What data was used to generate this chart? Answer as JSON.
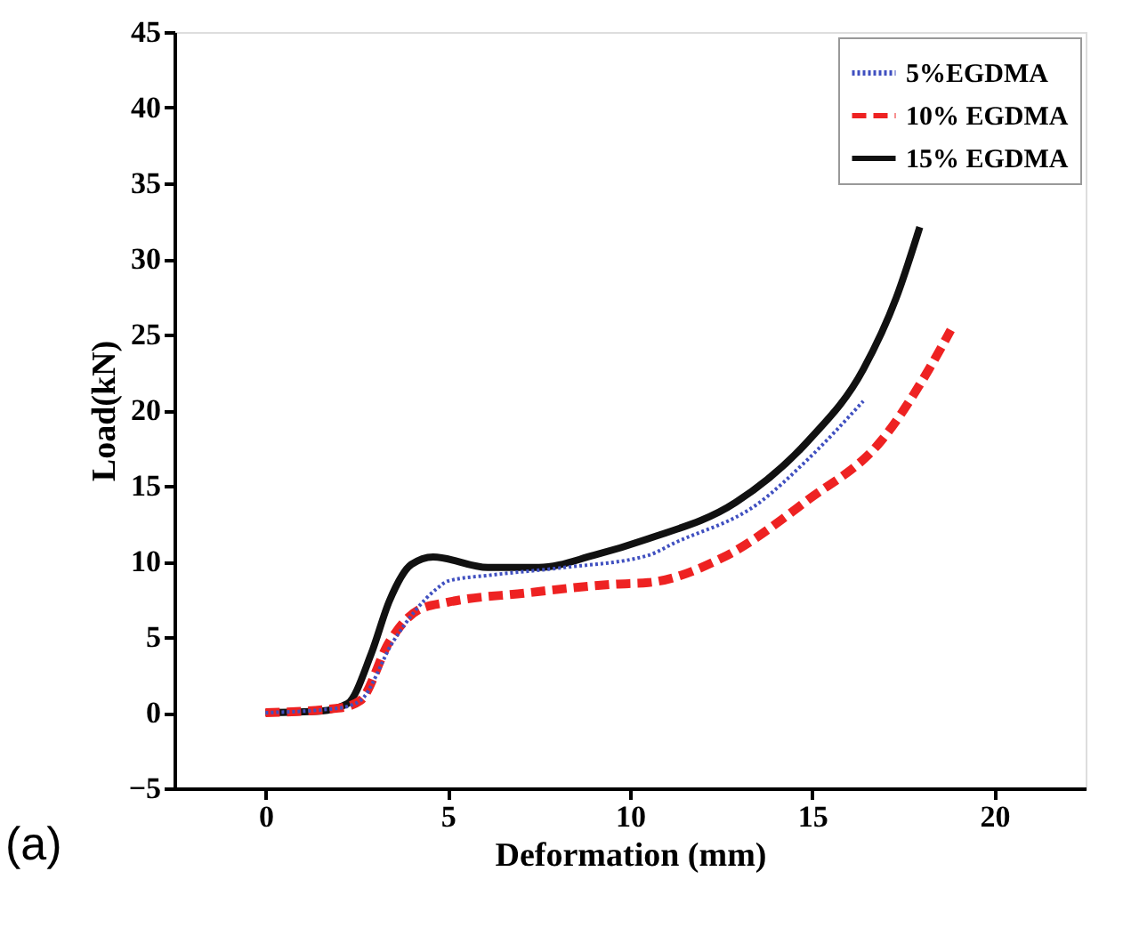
{
  "chart_data": {
    "type": "line",
    "xlabel": "Deformation (mm)",
    "ylabel": "Load(kN)",
    "xlim": [
      -2.5,
      22.5
    ],
    "xticks": [
      0,
      5,
      10,
      15,
      20
    ],
    "ylim": [
      -5,
      45
    ],
    "yticks": [
      -5,
      0,
      5,
      10,
      15,
      20,
      25,
      30,
      35,
      40,
      45
    ],
    "grid": false,
    "legend": "top right",
    "marker": "none",
    "annotations": [
      "(a)"
    ],
    "series": [
      {
        "name": "5%EGDMA",
        "color": "#4050c0",
        "line_style": "dotted",
        "x": [
          0,
          2.0,
          2.6,
          3.5,
          4.7,
          5.0,
          6.2,
          8.2,
          10.5,
          11.2,
          13.5,
          14.9,
          16.4
        ],
        "values": [
          0,
          0.3,
          0.8,
          4.7,
          8.2,
          8.7,
          9.1,
          9.6,
          10.4,
          11.2,
          13.8,
          16.8,
          20.6
        ]
      },
      {
        "name": "10% EGDMA",
        "color": "#ee2222",
        "line_style": "dashed",
        "x": [
          0,
          2.0,
          2.6,
          3.4,
          4.2,
          5.0,
          7.1,
          9.6,
          10.5,
          12.5,
          14.9,
          16.9,
          18.2,
          18.8
        ],
        "values": [
          0,
          0.3,
          0.8,
          4.7,
          6.8,
          7.3,
          7.9,
          8.5,
          8.6,
          10.2,
          14.1,
          18.0,
          22.7,
          25.3
        ]
      },
      {
        "name": "15% EGDMA",
        "color": "#111111",
        "line_style": "solid",
        "x": [
          0,
          1.5,
          2.25,
          2.9,
          3.4,
          4.0,
          4.6,
          6.1,
          7.5,
          9.0,
          10.5,
          12.9,
          14.9,
          16.4,
          17.3,
          17.95
        ],
        "values": [
          0,
          0.1,
          0.6,
          3.9,
          7.4,
          9.8,
          10.3,
          9.6,
          9.6,
          10.4,
          11.5,
          13.9,
          18.0,
          22.7,
          27.4,
          32.1
        ]
      }
    ]
  }
}
